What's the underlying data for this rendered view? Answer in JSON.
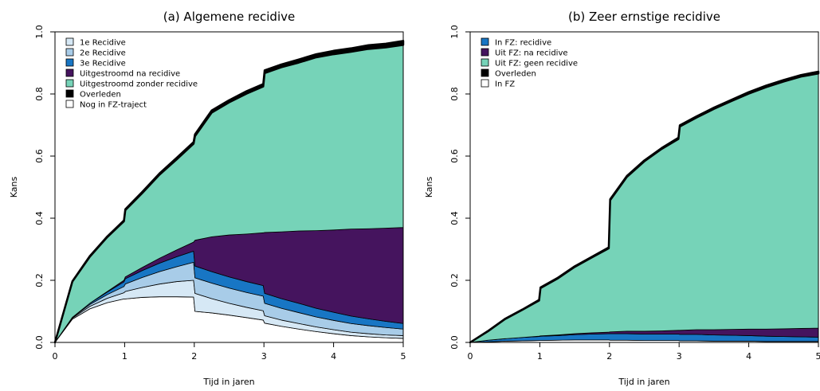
{
  "chart_data": [
    {
      "type": "area",
      "title": "(a)  Algemene recidive",
      "xlabel": "Tijd in jaren",
      "ylabel": "Kans",
      "xlim": [
        0,
        5
      ],
      "ylim": [
        0,
        1
      ],
      "x_ticks": [
        "0",
        "1",
        "2",
        "3",
        "4",
        "5"
      ],
      "y_ticks": [
        "0.0",
        "0.2",
        "0.4",
        "0.6",
        "0.8",
        "1.0"
      ],
      "stacked": true,
      "legend_position": "top-left",
      "x": [
        0,
        0.25,
        0.5,
        0.75,
        0.99,
        1.01,
        1.25,
        1.5,
        1.75,
        1.99,
        2.01,
        2.25,
        2.5,
        2.75,
        2.99,
        3.01,
        3.25,
        3.5,
        3.75,
        4,
        4.25,
        4.5,
        4.75,
        5
      ],
      "series": [
        {
          "name": "Nog in FZ-traject",
          "color": "#ffffff",
          "values": [
            0,
            0.075,
            0.108,
            0.128,
            0.14,
            0.14,
            0.145,
            0.147,
            0.147,
            0.146,
            0.1,
            0.095,
            0.088,
            0.08,
            0.072,
            0.062,
            0.052,
            0.043,
            0.035,
            0.028,
            0.022,
            0.018,
            0.015,
            0.013
          ]
        },
        {
          "name": "1e Recidive",
          "color": "#d6e8f5",
          "values": [
            0,
            0.003,
            0.008,
            0.014,
            0.02,
            0.024,
            0.032,
            0.041,
            0.049,
            0.054,
            0.058,
            0.046,
            0.038,
            0.033,
            0.03,
            0.024,
            0.02,
            0.018,
            0.015,
            0.013,
            0.011,
            0.01,
            0.009,
            0.009
          ]
        },
        {
          "name": "2e Recidive",
          "color": "#a8cce8",
          "values": [
            0,
            0.002,
            0.006,
            0.012,
            0.02,
            0.024,
            0.032,
            0.04,
            0.048,
            0.058,
            0.05,
            0.05,
            0.049,
            0.048,
            0.047,
            0.04,
            0.038,
            0.035,
            0.032,
            0.03,
            0.028,
            0.026,
            0.024,
            0.021
          ]
        },
        {
          "name": "3e Recidive",
          "color": "#1876c4",
          "values": [
            0,
            0.001,
            0.004,
            0.008,
            0.015,
            0.017,
            0.022,
            0.027,
            0.032,
            0.036,
            0.038,
            0.037,
            0.036,
            0.035,
            0.034,
            0.032,
            0.031,
            0.03,
            0.028,
            0.026,
            0.024,
            0.022,
            0.02,
            0.018
          ]
        },
        {
          "name": "Uitgestroomd na recidive",
          "color": "#45145e",
          "values": [
            0,
            0.0,
            0.0,
            0.002,
            0.005,
            0.006,
            0.01,
            0.016,
            0.022,
            0.029,
            0.083,
            0.112,
            0.135,
            0.153,
            0.17,
            0.196,
            0.215,
            0.233,
            0.25,
            0.265,
            0.28,
            0.29,
            0.3,
            0.309
          ]
        },
        {
          "name": "Uitgestroomd zonder recidive",
          "color": "#76d3b8",
          "values": [
            0,
            0.115,
            0.15,
            0.175,
            0.19,
            0.215,
            0.239,
            0.269,
            0.292,
            0.317,
            0.335,
            0.4,
            0.427,
            0.452,
            0.471,
            0.513,
            0.53,
            0.542,
            0.558,
            0.566,
            0.571,
            0.579,
            0.582,
            0.588
          ]
        },
        {
          "name": "Overleden",
          "color": "#000000",
          "values": [
            0,
            0.001,
            0.002,
            0.002,
            0.003,
            0.003,
            0.004,
            0.004,
            0.005,
            0.005,
            0.006,
            0.007,
            0.007,
            0.008,
            0.008,
            0.009,
            0.009,
            0.01,
            0.01,
            0.011,
            0.011,
            0.012,
            0.012,
            0.013
          ]
        }
      ],
      "legend_order": [
        "1e Recidive",
        "2e Recidive",
        "3e Recidive",
        "Uitgestroomd na recidive",
        "Uitgestroomd zonder recidive",
        "Overleden",
        "Nog in FZ-traject"
      ]
    },
    {
      "type": "area",
      "title": "(b)  Zeer ernstige recidive",
      "xlabel": "Tijd in jaren",
      "ylabel": "Kans",
      "xlim": [
        0,
        5
      ],
      "ylim": [
        0,
        1
      ],
      "x_ticks": [
        "0",
        "1",
        "2",
        "3",
        "4",
        "5"
      ],
      "y_ticks": [
        "0.0",
        "0.2",
        "0.4",
        "0.6",
        "0.8",
        "1.0"
      ],
      "stacked": true,
      "legend_position": "top-left",
      "x": [
        0,
        0.25,
        0.5,
        0.75,
        0.99,
        1.01,
        1.25,
        1.5,
        1.75,
        1.99,
        2.01,
        2.25,
        2.5,
        2.75,
        2.99,
        3.01,
        3.25,
        3.5,
        3.75,
        4,
        4.25,
        4.5,
        4.75,
        5
      ],
      "series": [
        {
          "name": "In FZ",
          "color": "#ffffff",
          "values": [
            0,
            0.002,
            0.004,
            0.005,
            0.006,
            0.006,
            0.007,
            0.008,
            0.008,
            0.008,
            0.007,
            0.007,
            0.006,
            0.006,
            0.006,
            0.005,
            0.005,
            0.004,
            0.004,
            0.004,
            0.003,
            0.003,
            0.003,
            0.003
          ]
        },
        {
          "name": "In FZ: recidive",
          "color": "#1876c4",
          "values": [
            0,
            0.005,
            0.008,
            0.011,
            0.013,
            0.014,
            0.015,
            0.017,
            0.019,
            0.02,
            0.021,
            0.021,
            0.021,
            0.021,
            0.021,
            0.021,
            0.021,
            0.02,
            0.019,
            0.018,
            0.017,
            0.016,
            0.015,
            0.014
          ]
        },
        {
          "name": "Uit FZ: na recidive",
          "color": "#45145e",
          "values": [
            0,
            0.0,
            0.0,
            0.0,
            0.001,
            0.001,
            0.002,
            0.003,
            0.004,
            0.005,
            0.006,
            0.008,
            0.009,
            0.01,
            0.012,
            0.013,
            0.015,
            0.017,
            0.019,
            0.021,
            0.023,
            0.025,
            0.027,
            0.029
          ]
        },
        {
          "name": "Uit FZ: geen recidive",
          "color": "#76d3b8",
          "values": [
            0,
            0.028,
            0.063,
            0.089,
            0.115,
            0.154,
            0.181,
            0.215,
            0.243,
            0.27,
            0.424,
            0.497,
            0.547,
            0.586,
            0.616,
            0.656,
            0.683,
            0.711,
            0.735,
            0.758,
            0.779,
            0.796,
            0.811,
            0.82
          ]
        },
        {
          "name": "Overleden",
          "color": "#000000",
          "values": [
            0,
            0.001,
            0.001,
            0.001,
            0.002,
            0.002,
            0.002,
            0.002,
            0.002,
            0.003,
            0.003,
            0.003,
            0.003,
            0.003,
            0.004,
            0.004,
            0.004,
            0.004,
            0.004,
            0.005,
            0.005,
            0.005,
            0.005,
            0.006
          ]
        }
      ],
      "legend_order": [
        "In FZ: recidive",
        "Uit FZ: na recidive",
        "Uit FZ: geen recidive",
        "Overleden",
        "In FZ"
      ]
    }
  ]
}
